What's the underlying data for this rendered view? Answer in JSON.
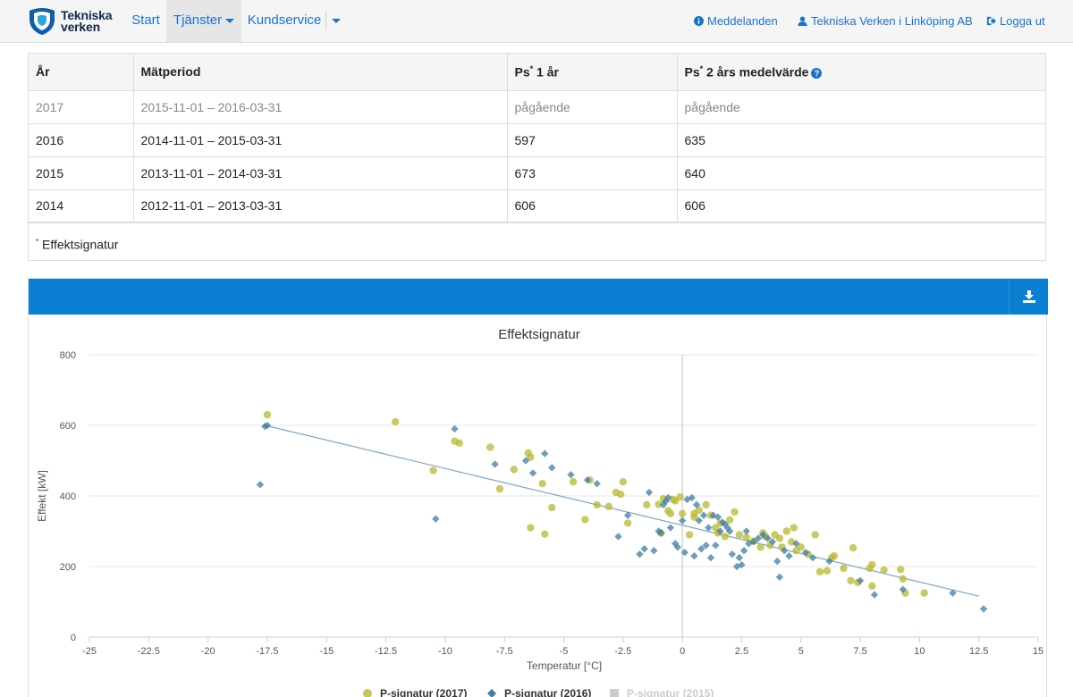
{
  "navbar": {
    "brand": "Tekniska verken",
    "brand_line1": "Tekniska",
    "brand_line2": "verken",
    "items": [
      {
        "label": "Start"
      },
      {
        "label": "Tjänster"
      },
      {
        "label": "Kundservice"
      }
    ],
    "right": {
      "messages": "Meddelanden",
      "account": "Tekniska Verken i Linköping AB",
      "logout": "Logga ut"
    },
    "colors": {
      "link": "#1a73c7",
      "bg": "#f5f5f5"
    }
  },
  "table": {
    "headers": [
      "År",
      "Mätperiod",
      "Ps",
      "1 år",
      "2 års medelvärde"
    ],
    "rows": [
      {
        "year": "2017",
        "period": "2015-11-01 – 2016-03-31",
        "ps1": "pågående",
        "ps2": "pågående"
      },
      {
        "year": "2016",
        "period": "2014-11-01 – 2015-03-31",
        "ps1": "597",
        "ps2": "635"
      },
      {
        "year": "2015",
        "period": "2013-11-01 – 2014-03-31",
        "ps1": "673",
        "ps2": "640"
      },
      {
        "year": "2014",
        "period": "2012-11-01 – 2013-03-31",
        "ps1": "606",
        "ps2": "606"
      }
    ],
    "footnote": "Effektsignatur"
  },
  "panel": {
    "header_color": "#0b7fd1",
    "download_icon": "download-icon"
  },
  "chart_data": {
    "type": "scatter",
    "title": "Effektsignatur",
    "xlabel": "Temperatur [°C]",
    "ylabel": "Effekt [kW]",
    "xlim": [
      -25,
      15
    ],
    "ylim": [
      0,
      800
    ],
    "xticks": [
      -25,
      -22.5,
      -20,
      -17.5,
      -15,
      -12.5,
      -10,
      -7.5,
      -5,
      -2.5,
      0,
      2.5,
      5,
      7.5,
      10,
      12.5,
      15
    ],
    "yticks": [
      0,
      200,
      400,
      600,
      800
    ],
    "grid": true,
    "legend": "bottom",
    "series": [
      {
        "name": "P-signatur (2017)",
        "marker": "circle",
        "color": "#b7b82e",
        "visible": true,
        "points": [
          [
            -17.5,
            630
          ],
          [
            -12.1,
            610
          ],
          [
            -10.5,
            472
          ],
          [
            -9.6,
            555
          ],
          [
            -9.4,
            550
          ],
          [
            -8.1,
            538
          ],
          [
            -7.7,
            420
          ],
          [
            -7.1,
            475
          ],
          [
            -6.5,
            522
          ],
          [
            -6.4,
            510
          ],
          [
            -6.4,
            310
          ],
          [
            -5.9,
            435
          ],
          [
            -5.8,
            292
          ],
          [
            -5.5,
            367
          ],
          [
            -4.6,
            440
          ],
          [
            -4.1,
            333
          ],
          [
            -3.9,
            445
          ],
          [
            -3.6,
            375
          ],
          [
            -3.1,
            370
          ],
          [
            -2.8,
            410
          ],
          [
            -2.6,
            405
          ],
          [
            -2.5,
            440
          ],
          [
            -2.3,
            323
          ],
          [
            -1.5,
            375
          ],
          [
            -1.0,
            376
          ],
          [
            -0.9,
            295
          ],
          [
            -0.8,
            392
          ],
          [
            -0.6,
            358
          ],
          [
            -0.5,
            350
          ],
          [
            -0.4,
            390
          ],
          [
            -0.3,
            386
          ],
          [
            -0.1,
            397
          ],
          [
            0.0,
            350
          ],
          [
            0.3,
            290
          ],
          [
            0.5,
            350
          ],
          [
            0.5,
            340
          ],
          [
            0.7,
            360
          ],
          [
            1.0,
            375
          ],
          [
            1.2,
            345
          ],
          [
            1.4,
            310
          ],
          [
            1.5,
            295
          ],
          [
            1.6,
            323
          ],
          [
            1.8,
            285
          ],
          [
            2.0,
            332
          ],
          [
            2.2,
            355
          ],
          [
            2.4,
            290
          ],
          [
            2.7,
            282
          ],
          [
            3.0,
            272
          ],
          [
            3.3,
            255
          ],
          [
            3.4,
            295
          ],
          [
            3.5,
            285
          ],
          [
            3.7,
            260
          ],
          [
            3.9,
            290
          ],
          [
            4.1,
            280
          ],
          [
            4.2,
            255
          ],
          [
            4.4,
            300
          ],
          [
            4.6,
            270
          ],
          [
            4.7,
            310
          ],
          [
            4.8,
            245
          ],
          [
            5.0,
            255
          ],
          [
            5.3,
            235
          ],
          [
            5.6,
            290
          ],
          [
            5.8,
            185
          ],
          [
            6.1,
            188
          ],
          [
            6.3,
            225
          ],
          [
            6.4,
            230
          ],
          [
            6.8,
            195
          ],
          [
            7.1,
            160
          ],
          [
            7.2,
            253
          ],
          [
            7.4,
            155
          ],
          [
            7.9,
            195
          ],
          [
            8.0,
            205
          ],
          [
            8.0,
            145
          ],
          [
            8.5,
            190
          ],
          [
            9.2,
            192
          ],
          [
            9.3,
            165
          ],
          [
            9.4,
            125
          ],
          [
            10.2,
            125
          ]
        ]
      },
      {
        "name": "P-signatur (2016)",
        "marker": "diamond",
        "color": "#3d7ea3",
        "visible": true,
        "points": [
          [
            -17.8,
            432
          ],
          [
            -17.6,
            597
          ],
          [
            -17.5,
            600
          ],
          [
            -10.4,
            335
          ],
          [
            -9.6,
            590
          ],
          [
            -7.9,
            490
          ],
          [
            -6.6,
            500
          ],
          [
            -6.3,
            465
          ],
          [
            -5.8,
            520
          ],
          [
            -5.5,
            480
          ],
          [
            -4.7,
            460
          ],
          [
            -4.0,
            445
          ],
          [
            -3.6,
            435
          ],
          [
            -2.7,
            285
          ],
          [
            -2.3,
            345
          ],
          [
            -1.8,
            235
          ],
          [
            -1.6,
            250
          ],
          [
            -1.4,
            410
          ],
          [
            -1.2,
            245
          ],
          [
            -1.0,
            300
          ],
          [
            -0.9,
            295
          ],
          [
            -0.7,
            385
          ],
          [
            -0.6,
            395
          ],
          [
            -0.5,
            310
          ],
          [
            -0.3,
            265
          ],
          [
            -0.2,
            255
          ],
          [
            0.0,
            330
          ],
          [
            0.1,
            240
          ],
          [
            0.2,
            390
          ],
          [
            0.4,
            395
          ],
          [
            0.5,
            230
          ],
          [
            0.6,
            375
          ],
          [
            0.7,
            330
          ],
          [
            0.8,
            250
          ],
          [
            0.9,
            345
          ],
          [
            1.0,
            260
          ],
          [
            1.1,
            310
          ],
          [
            1.2,
            225
          ],
          [
            1.3,
            345
          ],
          [
            1.4,
            260
          ],
          [
            1.5,
            340
          ],
          [
            1.6,
            300
          ],
          [
            1.7,
            325
          ],
          [
            1.8,
            320
          ],
          [
            2.0,
            300
          ],
          [
            2.1,
            235
          ],
          [
            2.3,
            200
          ],
          [
            2.4,
            225
          ],
          [
            2.5,
            205
          ],
          [
            2.6,
            245
          ],
          [
            2.8,
            265
          ],
          [
            3.0,
            270
          ],
          [
            3.2,
            280
          ],
          [
            3.4,
            290
          ],
          [
            3.6,
            280
          ],
          [
            3.8,
            270
          ],
          [
            4.0,
            215
          ],
          [
            4.1,
            170
          ],
          [
            4.3,
            245
          ],
          [
            4.5,
            230
          ],
          [
            4.8,
            265
          ],
          [
            5.2,
            240
          ],
          [
            5.5,
            225
          ],
          [
            6.2,
            215
          ],
          [
            7.5,
            160
          ],
          [
            8.1,
            120
          ],
          [
            9.3,
            135
          ],
          [
            11.4,
            125
          ],
          [
            12.7,
            80
          ],
          [
            -0.8,
            375
          ],
          [
            1.9,
            310
          ],
          [
            2.7,
            300
          ]
        ]
      },
      {
        "name": "P-signatur (2015)",
        "marker": "square",
        "color": "#cccccc",
        "visible": false,
        "points": []
      }
    ],
    "trendline": {
      "from": [
        -17.6,
        600
      ],
      "to": [
        12.5,
        116
      ],
      "color": "#7fa6c6"
    }
  }
}
